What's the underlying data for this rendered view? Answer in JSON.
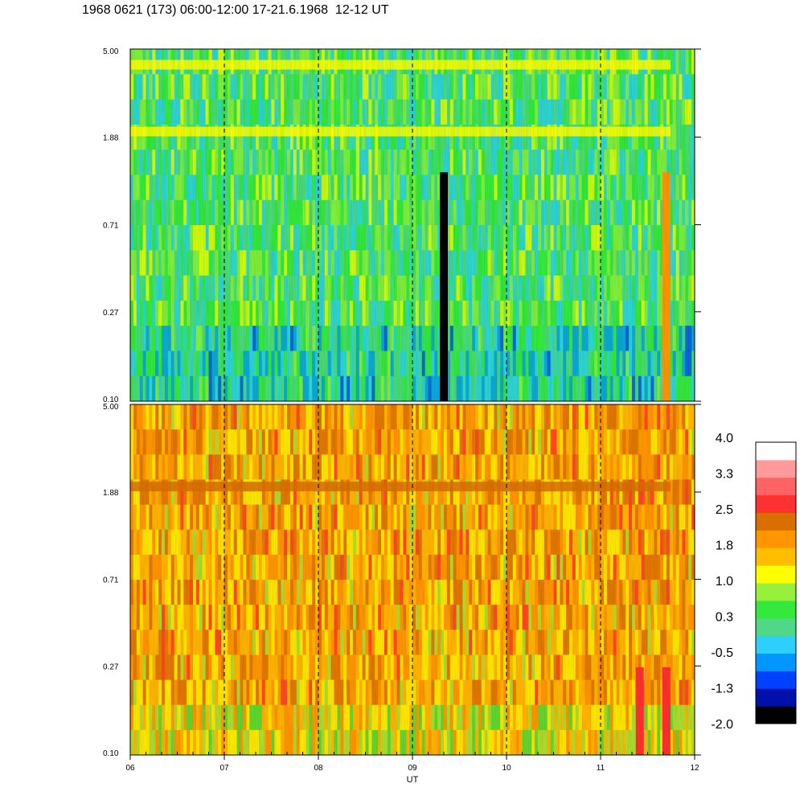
{
  "title": "1968 0621 (173) 06:00-12:00 17-21.6.1968  12-12 UT",
  "colors": {
    "scale": [
      "#000000",
      "#0010aa",
      "#0040ff",
      "#0096ff",
      "#2ccfff",
      "#4fd888",
      "#34e83c",
      "#96f03c",
      "#ffff00",
      "#ffbe00",
      "#ff9600",
      "#d96f00",
      "#ff3030",
      "#ff6464",
      "#ff9a9a",
      "#ffffff"
    ],
    "grid": "#000000"
  },
  "chart_data": [
    {
      "type": "heatmap",
      "panel": "top",
      "x": [
        "06",
        "07",
        "08",
        "09",
        "10",
        "11",
        "12"
      ],
      "xlabel": "UT",
      "y_ticks": [
        "5.00",
        "1.88",
        "0.71",
        "0.27",
        "0.10"
      ],
      "ylim": [
        0.1,
        5.0
      ],
      "y_scale": "log",
      "dominant_level": 0.3,
      "features": [
        {
          "kind": "horizontal band",
          "y": 4.2,
          "level": 1.0
        },
        {
          "kind": "horizontal band",
          "y": 2.0,
          "level": 1.0
        },
        {
          "kind": "vertical streak",
          "x": "09:20",
          "level": -2.0
        },
        {
          "kind": "vertical streak",
          "x": "11:42",
          "level": 1.8
        }
      ]
    },
    {
      "type": "heatmap",
      "panel": "bottom",
      "x": [
        "06",
        "07",
        "08",
        "09",
        "10",
        "11",
        "12"
      ],
      "xlabel": "UT",
      "y_ticks": [
        "5.00",
        "1.88",
        "0.71",
        "0.27",
        "0.10"
      ],
      "ylim": [
        0.1,
        5.0
      ],
      "y_scale": "log",
      "dominant_level": 1.8,
      "features": [
        {
          "kind": "horizontal band",
          "y": 2.0,
          "level": 2.5
        },
        {
          "kind": "vertical streak",
          "x": "11:25",
          "level": 2.9
        },
        {
          "kind": "vertical streak",
          "x": "11:42",
          "level": 2.9
        }
      ]
    },
    {
      "type": "colorbar",
      "labels": [
        "4.0",
        "3.3",
        "2.5",
        "1.8",
        "1.0",
        "0.3",
        "-0.5",
        "-1.3",
        "-2.0"
      ]
    }
  ]
}
